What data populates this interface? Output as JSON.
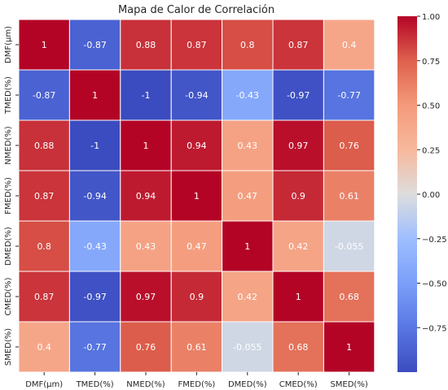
{
  "chart_data": {
    "type": "heatmap",
    "title": "Mapa de Calor de Correlación",
    "xlabel": "",
    "ylabel": "",
    "x_categories": [
      "DMF(µm)",
      "TMED(%)",
      "NMED(%)",
      "FMED(%)",
      "DMED(%)",
      "CMED(%)",
      "SMED(%)"
    ],
    "y_categories": [
      "DMF(µm)",
      "TMED(%)",
      "NMED(%)",
      "FMED(%)",
      "DMED(%)",
      "CMED(%)",
      "SMED(%)"
    ],
    "values": [
      [
        1,
        -0.87,
        0.88,
        0.87,
        0.8,
        0.87,
        0.4
      ],
      [
        -0.87,
        1,
        -1,
        -0.94,
        -0.43,
        -0.97,
        -0.77
      ],
      [
        0.88,
        -1,
        1,
        0.94,
        0.43,
        0.97,
        0.76
      ],
      [
        0.87,
        -0.94,
        0.94,
        1,
        0.47,
        0.9,
        0.61
      ],
      [
        0.8,
        -0.43,
        0.43,
        0.47,
        1,
        0.42,
        -0.055
      ],
      [
        0.87,
        -0.97,
        0.97,
        0.9,
        0.42,
        1,
        0.68
      ],
      [
        0.4,
        -0.77,
        0.76,
        0.61,
        -0.055,
        0.68,
        1
      ]
    ],
    "annotations": [
      [
        "1",
        "-0.87",
        "0.88",
        "0.87",
        "0.8",
        "0.87",
        "0.4"
      ],
      [
        "-0.87",
        "1",
        "-1",
        "-0.94",
        "-0.43",
        "-0.97",
        "-0.77"
      ],
      [
        "0.88",
        "-1",
        "1",
        "0.94",
        "0.43",
        "0.97",
        "0.76"
      ],
      [
        "0.87",
        "-0.94",
        "0.94",
        "1",
        "0.47",
        "0.9",
        "0.61"
      ],
      [
        "0.8",
        "-0.43",
        "0.43",
        "0.47",
        "1",
        "0.42",
        "-0.055"
      ],
      [
        "0.87",
        "-0.97",
        "0.97",
        "0.9",
        "0.42",
        "1",
        "0.68"
      ],
      [
        "0.4",
        "-0.77",
        "0.76",
        "0.61",
        "-0.055",
        "0.68",
        "1"
      ]
    ],
    "colormap": "coolwarm",
    "vmin": -1,
    "vmax": 1,
    "colorbar_ticks": [
      1.0,
      0.75,
      0.5,
      0.25,
      0.0,
      -0.25,
      -0.5,
      -0.75
    ],
    "colorbar_tick_labels": [
      "1.00",
      "0.75",
      "0.50",
      "0.25",
      "0.00",
      "−0.25",
      "−0.50",
      "−0.75"
    ],
    "colors": {
      "low": "#3b4cc0",
      "mid": "#dddddd",
      "high": "#b40426",
      "cell_border": "#ffffff",
      "text_dark": "#262626",
      "text_on_cell": "#ffffff"
    }
  }
}
